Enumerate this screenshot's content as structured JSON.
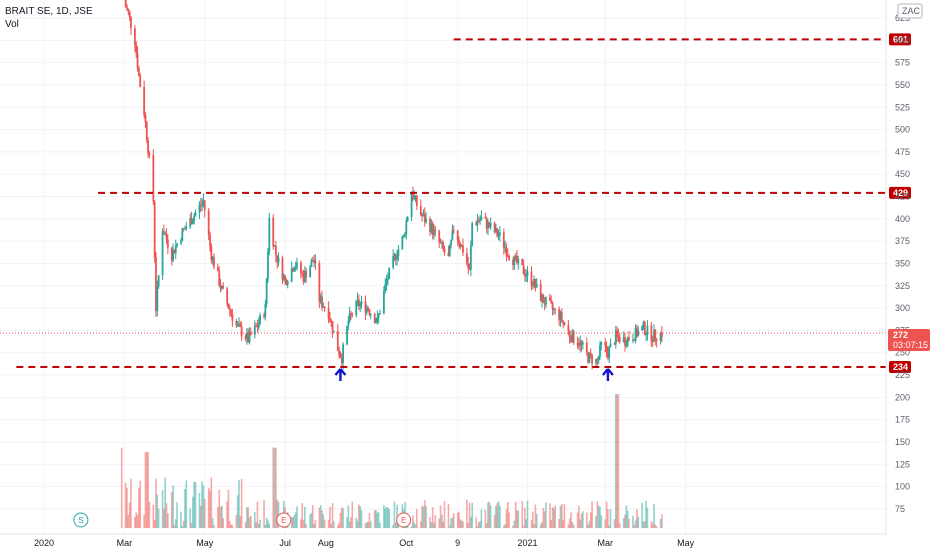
{
  "header": {
    "title": "BRAIT SE, 1D, JSE",
    "volume_label": "Vol",
    "currency": "ZAC"
  },
  "colors": {
    "up": "#26a69a",
    "down": "#ef5350",
    "level": "#c00000",
    "arrow": "#1414c8",
    "grid": "#f0f3fa"
  },
  "price_tag": {
    "value": "272",
    "countdown": "03:07:15"
  },
  "chart_data": {
    "type": "candlestick",
    "title": "BRAIT SE, 1D, JSE",
    "y_ticks": [
      625,
      600,
      575,
      550,
      525,
      500,
      475,
      450,
      425,
      400,
      375,
      350,
      325,
      300,
      275,
      250,
      225,
      200,
      175,
      150,
      125,
      100,
      75
    ],
    "x_ticks": [
      "2020",
      "Mar",
      "May",
      "Jul",
      "Aug",
      "Oct",
      "9",
      "2021",
      "Mar",
      "May"
    ],
    "levels": [
      {
        "value": 601,
        "label": "601",
        "start": "2020-11-06"
      },
      {
        "value": 429,
        "label": "429",
        "start": "2020-02-10"
      },
      {
        "value": 234,
        "label": "234",
        "start": "2019-12-10"
      }
    ],
    "arrows": [
      {
        "date": "2020-08-12",
        "value": 225
      },
      {
        "date": "2021-03-03",
        "value": 225
      }
    ],
    "events": [
      {
        "label": "S",
        "date": "2020-01-28"
      },
      {
        "label": "E",
        "date": "2020-06-30"
      },
      {
        "label": "E",
        "date": "2020-09-29"
      }
    ],
    "last_price": 272,
    "price_path": [
      [
        "2020-02-28",
        650
      ],
      [
        "2020-03-04",
        630
      ],
      [
        "2020-03-09",
        600
      ],
      [
        "2020-03-12",
        560
      ],
      [
        "2020-03-16",
        520
      ],
      [
        "2020-03-19",
        480
      ],
      [
        "2020-03-23",
        420
      ],
      [
        "2020-03-25",
        300
      ],
      [
        "2020-03-30",
        390
      ],
      [
        "2020-04-06",
        360
      ],
      [
        "2020-04-14",
        385
      ],
      [
        "2020-04-21",
        400
      ],
      [
        "2020-04-30",
        420
      ],
      [
        "2020-05-06",
        360
      ],
      [
        "2020-05-14",
        320
      ],
      [
        "2020-05-25",
        280
      ],
      [
        "2020-06-03",
        265
      ],
      [
        "2020-06-10",
        280
      ],
      [
        "2020-06-16",
        300
      ],
      [
        "2020-06-19",
        400
      ],
      [
        "2020-06-24",
        360
      ],
      [
        "2020-07-01",
        330
      ],
      [
        "2020-07-08",
        350
      ],
      [
        "2020-07-15",
        335
      ],
      [
        "2020-07-23",
        355
      ],
      [
        "2020-07-27",
        310
      ],
      [
        "2020-08-03",
        295
      ],
      [
        "2020-08-10",
        255
      ],
      [
        "2020-08-13",
        245
      ],
      [
        "2020-08-18",
        285
      ],
      [
        "2020-08-25",
        305
      ],
      [
        "2020-09-02",
        300
      ],
      [
        "2020-09-09",
        285
      ],
      [
        "2020-09-16",
        330
      ],
      [
        "2020-09-23",
        360
      ],
      [
        "2020-09-29",
        380
      ],
      [
        "2020-10-05",
        430
      ],
      [
        "2020-10-12",
        405
      ],
      [
        "2020-10-20",
        390
      ],
      [
        "2020-10-27",
        370
      ],
      [
        "2020-11-02",
        355
      ],
      [
        "2020-11-06",
        390
      ],
      [
        "2020-11-13",
        365
      ],
      [
        "2020-11-18",
        340
      ],
      [
        "2020-11-20",
        395
      ],
      [
        "2020-11-27",
        400
      ],
      [
        "2020-12-04",
        390
      ],
      [
        "2020-12-11",
        380
      ],
      [
        "2020-12-18",
        360
      ],
      [
        "2021-01-05",
        330
      ],
      [
        "2021-01-12",
        310
      ],
      [
        "2021-01-19",
        300
      ],
      [
        "2021-01-26",
        290
      ],
      [
        "2021-02-02",
        270
      ],
      [
        "2021-02-09",
        262
      ],
      [
        "2021-02-16",
        245
      ],
      [
        "2021-02-23",
        240
      ],
      [
        "2021-02-26",
        258
      ],
      [
        "2021-03-03",
        250
      ],
      [
        "2021-03-09",
        268
      ],
      [
        "2021-03-16",
        264
      ],
      [
        "2021-03-23",
        270
      ],
      [
        "2021-03-30",
        278
      ],
      [
        "2021-04-06",
        268
      ],
      [
        "2021-04-13",
        272
      ]
    ],
    "volume_spikes": [
      {
        "date": "2020-02-27",
        "value": 140
      },
      {
        "date": "2020-03-18",
        "value": 135
      },
      {
        "date": "2020-06-23",
        "value": 140
      },
      {
        "date": "2021-03-10",
        "value": 200
      }
    ]
  }
}
